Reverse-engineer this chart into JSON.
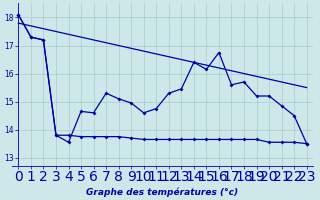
{
  "title": "Graphe des températures (°c)",
  "bg_color": "#cce8e8",
  "grid_color": "#aacccc",
  "line_color": "#0000aa",
  "x_ticks": [
    0,
    1,
    2,
    3,
    4,
    5,
    6,
    7,
    8,
    9,
    10,
    11,
    12,
    13,
    14,
    15,
    16,
    17,
    18,
    19,
    20,
    21,
    22,
    23
  ],
  "y_ticks": [
    13,
    14,
    15,
    16,
    17,
    18
  ],
  "ylim": [
    12.7,
    18.5
  ],
  "xlim": [
    -0.5,
    23.5
  ],
  "series1_x": [
    0,
    1,
    2,
    3,
    4,
    5,
    6,
    7,
    8,
    9,
    10,
    11,
    12,
    13,
    14,
    15,
    16,
    17,
    18,
    19,
    20,
    21,
    22,
    23
  ],
  "series1_y": [
    18.1,
    17.3,
    17.2,
    13.8,
    13.55,
    14.65,
    14.6,
    15.3,
    15.1,
    14.95,
    14.6,
    14.75,
    15.3,
    15.45,
    16.4,
    16.15,
    16.75,
    15.6,
    15.7,
    15.2,
    15.2,
    14.85,
    14.5,
    13.5
  ],
  "series2_x": [
    0,
    1,
    2,
    3,
    4,
    5,
    6,
    7,
    8,
    9,
    10,
    11,
    12,
    13,
    14,
    15,
    16,
    17,
    18,
    19,
    20,
    21,
    22,
    23
  ],
  "series2_y": [
    18.1,
    17.3,
    17.2,
    13.8,
    13.8,
    13.75,
    13.75,
    13.75,
    13.75,
    13.7,
    13.65,
    13.65,
    13.65,
    13.65,
    13.65,
    13.65,
    13.65,
    13.65,
    13.65,
    13.65,
    13.55,
    13.55,
    13.55,
    13.5
  ],
  "series3_x": [
    0,
    23
  ],
  "series3_y": [
    17.8,
    15.5
  ],
  "figsize": [
    3.2,
    2.0
  ],
  "dpi": 100
}
